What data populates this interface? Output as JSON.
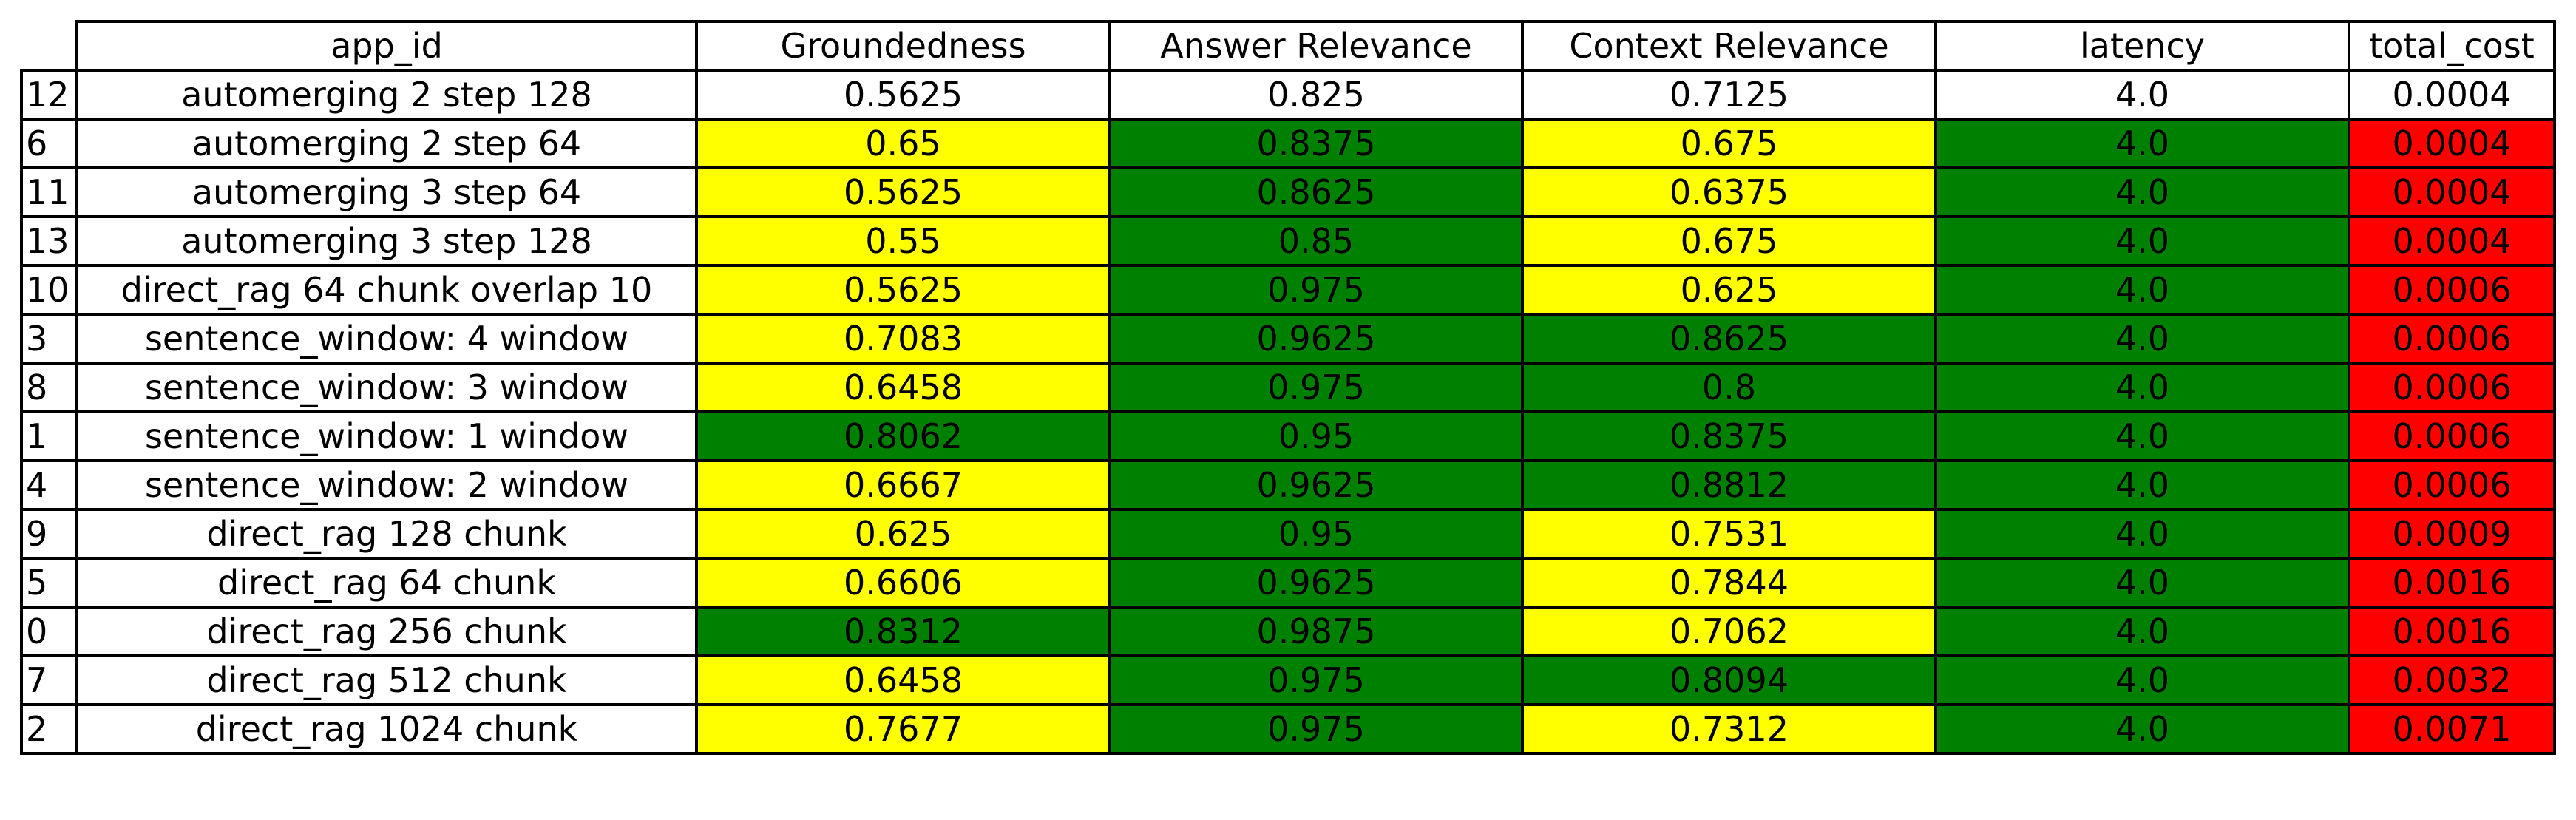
{
  "chart_data": {
    "type": "table",
    "columns": [
      "app_id",
      "Groundedness",
      "Answer Relevance",
      "Context Relevance",
      "latency",
      "total_cost"
    ],
    "colors": {
      "yellow": "#ffff00",
      "green": "#008000",
      "red": "#ff0000",
      "white": "#ffffff"
    },
    "rows": [
      {
        "index": "12",
        "cells": [
          "automerging 2 step 128",
          "0.5625",
          "0.825",
          "0.7125",
          "4.0",
          "0.0004"
        ],
        "fills": [
          "white",
          "white",
          "white",
          "white",
          "white",
          "white"
        ]
      },
      {
        "index": "6",
        "cells": [
          "automerging 2 step 64",
          "0.65",
          "0.8375",
          "0.675",
          "4.0",
          "0.0004"
        ],
        "fills": [
          "white",
          "yellow",
          "green",
          "yellow",
          "green",
          "red"
        ]
      },
      {
        "index": "11",
        "cells": [
          "automerging 3 step 64",
          "0.5625",
          "0.8625",
          "0.6375",
          "4.0",
          "0.0004"
        ],
        "fills": [
          "white",
          "yellow",
          "green",
          "yellow",
          "green",
          "red"
        ]
      },
      {
        "index": "13",
        "cells": [
          "automerging 3 step 128",
          "0.55",
          "0.85",
          "0.675",
          "4.0",
          "0.0004"
        ],
        "fills": [
          "white",
          "yellow",
          "green",
          "yellow",
          "green",
          "red"
        ]
      },
      {
        "index": "10",
        "cells": [
          "direct_rag 64 chunk overlap 10",
          "0.5625",
          "0.975",
          "0.625",
          "4.0",
          "0.0006"
        ],
        "fills": [
          "white",
          "yellow",
          "green",
          "yellow",
          "green",
          "red"
        ]
      },
      {
        "index": "3",
        "cells": [
          "sentence_window: 4 window",
          "0.7083",
          "0.9625",
          "0.8625",
          "4.0",
          "0.0006"
        ],
        "fills": [
          "white",
          "yellow",
          "green",
          "green",
          "green",
          "red"
        ]
      },
      {
        "index": "8",
        "cells": [
          "sentence_window: 3 window",
          "0.6458",
          "0.975",
          "0.8",
          "4.0",
          "0.0006"
        ],
        "fills": [
          "white",
          "yellow",
          "green",
          "green",
          "green",
          "red"
        ]
      },
      {
        "index": "1",
        "cells": [
          "sentence_window: 1 window",
          "0.8062",
          "0.95",
          "0.8375",
          "4.0",
          "0.0006"
        ],
        "fills": [
          "white",
          "green",
          "green",
          "green",
          "green",
          "red"
        ]
      },
      {
        "index": "4",
        "cells": [
          "sentence_window: 2 window",
          "0.6667",
          "0.9625",
          "0.8812",
          "4.0",
          "0.0006"
        ],
        "fills": [
          "white",
          "yellow",
          "green",
          "green",
          "green",
          "red"
        ]
      },
      {
        "index": "9",
        "cells": [
          "direct_rag 128 chunk",
          "0.625",
          "0.95",
          "0.7531",
          "4.0",
          "0.0009"
        ],
        "fills": [
          "white",
          "yellow",
          "green",
          "yellow",
          "green",
          "red"
        ]
      },
      {
        "index": "5",
        "cells": [
          "direct_rag 64 chunk",
          "0.6606",
          "0.9625",
          "0.7844",
          "4.0",
          "0.0016"
        ],
        "fills": [
          "white",
          "yellow",
          "green",
          "yellow",
          "green",
          "red"
        ]
      },
      {
        "index": "0",
        "cells": [
          "direct_rag 256 chunk",
          "0.8312",
          "0.9875",
          "0.7062",
          "4.0",
          "0.0016"
        ],
        "fills": [
          "white",
          "green",
          "green",
          "yellow",
          "green",
          "red"
        ]
      },
      {
        "index": "7",
        "cells": [
          "direct_rag 512 chunk",
          "0.6458",
          "0.975",
          "0.8094",
          "4.0",
          "0.0032"
        ],
        "fills": [
          "white",
          "yellow",
          "green",
          "green",
          "green",
          "red"
        ]
      },
      {
        "index": "2",
        "cells": [
          "direct_rag 1024 chunk",
          "0.7677",
          "0.975",
          "0.7312",
          "4.0",
          "0.0071"
        ],
        "fills": [
          "white",
          "yellow",
          "green",
          "yellow",
          "green",
          "red"
        ]
      }
    ]
  }
}
